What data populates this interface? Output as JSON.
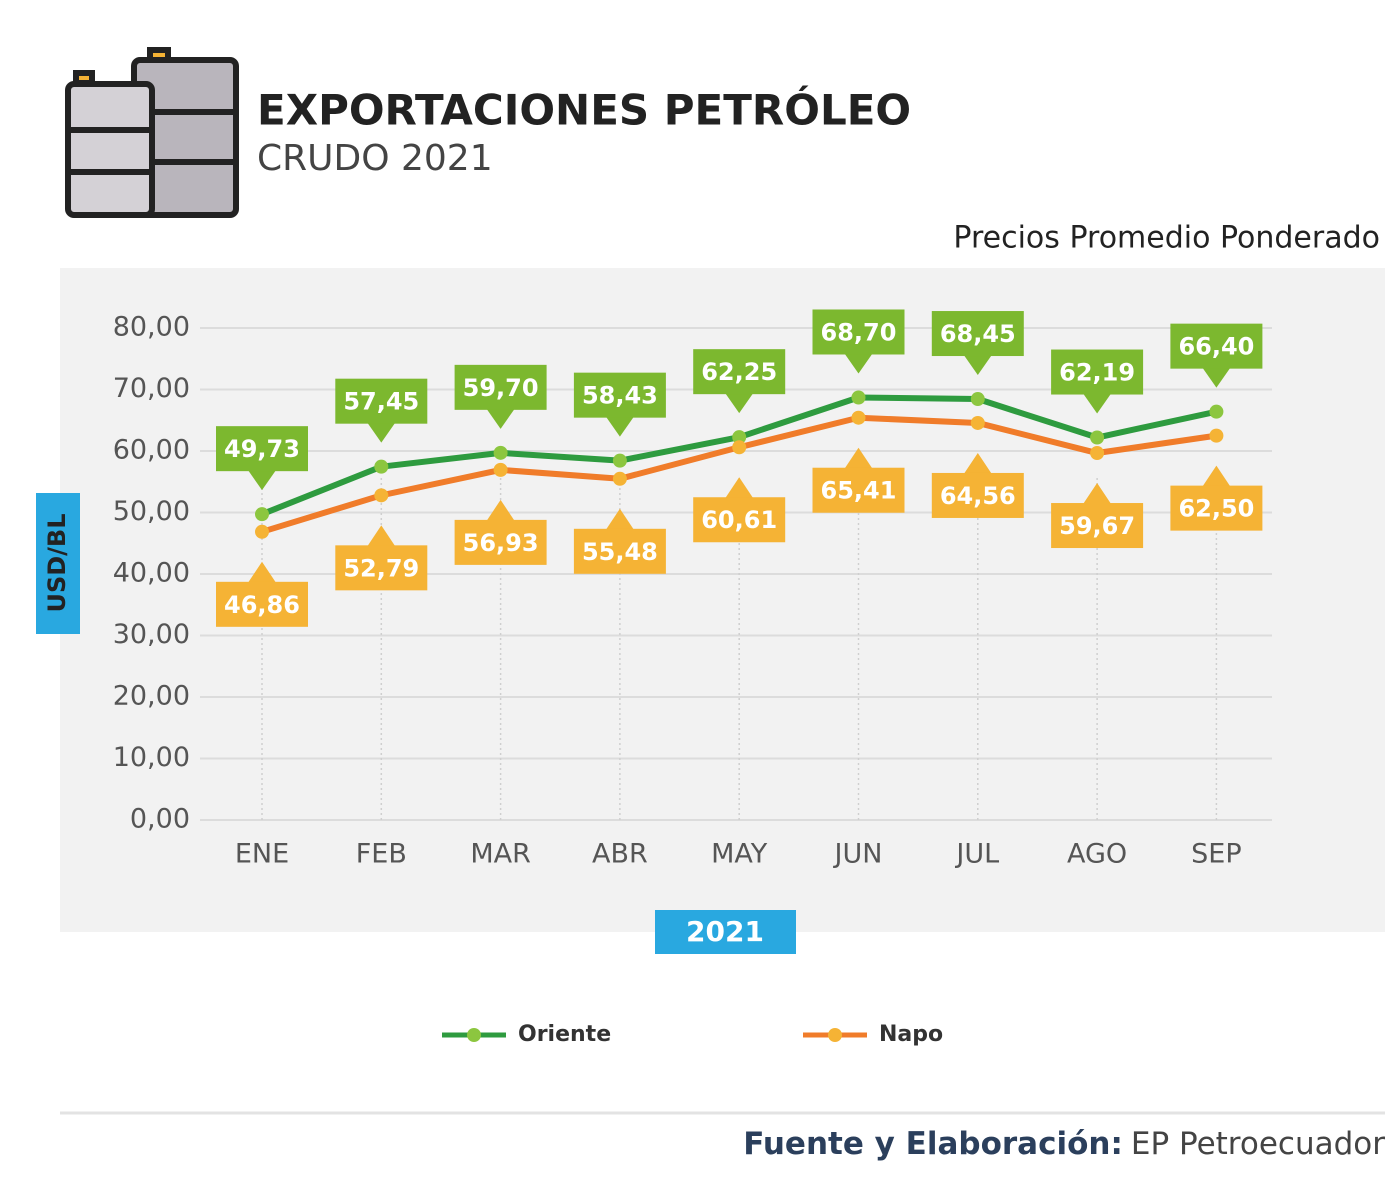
{
  "chart_data": {
    "type": "line",
    "title": "EXPORTACIONES PETRÓLEO",
    "subtitle": "CRUDO 2021",
    "caption": "Precios Promedio Ponderado",
    "y_label": "USD/BL",
    "x_label": "2021",
    "source_label": "Fuente y Elaboración:",
    "source": "EP Petroecuador",
    "categories": [
      "ENE",
      "FEB",
      "MAR",
      "ABR",
      "MAY",
      "JUN",
      "JUL",
      "AGO",
      "SEP"
    ],
    "series": [
      {
        "name": "Oriente",
        "color": "#2e9b3f",
        "marker_color": "#8cc63f",
        "label_color": "#7cb82f",
        "values": [
          49.73,
          57.45,
          59.7,
          58.43,
          62.25,
          68.7,
          68.45,
          62.19,
          66.4
        ],
        "value_labels": [
          "49,73",
          "57,45",
          "59,70",
          "58,43",
          "62,25",
          "68,70",
          "68,45",
          "62,19",
          "66,40"
        ]
      },
      {
        "name": "Napo",
        "color": "#f07c2a",
        "marker_color": "#f5b335",
        "label_color": "#f5b335",
        "values": [
          46.86,
          52.79,
          56.93,
          55.48,
          60.61,
          65.41,
          64.56,
          59.67,
          62.5
        ],
        "value_labels": [
          "46,86",
          "52,79",
          "56,93",
          "55,48",
          "60,61",
          "65,41",
          "64,56",
          "59,67",
          "62,50"
        ]
      }
    ],
    "ylim": [
      0,
      80
    ],
    "yticks": [
      {
        "value": 0,
        "label": "0,00"
      },
      {
        "value": 10,
        "label": "10,00"
      },
      {
        "value": 20,
        "label": "20,00"
      },
      {
        "value": 30,
        "label": "30,00"
      },
      {
        "value": 40,
        "label": "40,00"
      },
      {
        "value": 50,
        "label": "50,00"
      },
      {
        "value": 60,
        "label": "60,00"
      },
      {
        "value": 70,
        "label": "70,00"
      },
      {
        "value": 80,
        "label": "80,00"
      }
    ],
    "grid": true
  }
}
